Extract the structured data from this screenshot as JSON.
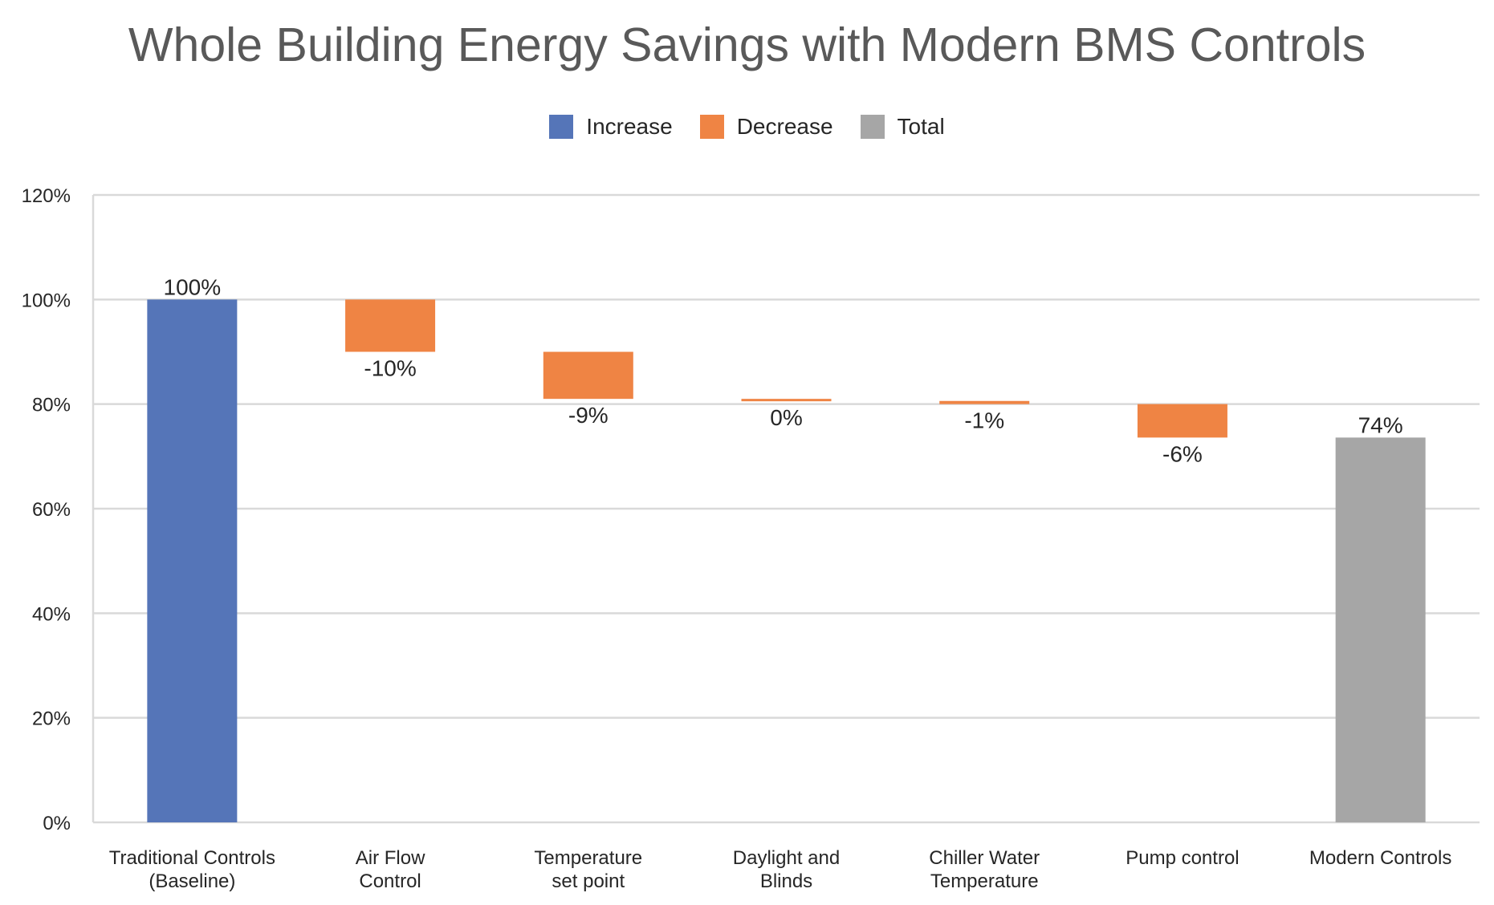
{
  "chart_data": {
    "type": "waterfall",
    "title": "Whole Building Energy Savings with Modern BMS Controls",
    "legend": [
      {
        "name": "Increase",
        "color": "#5575B8"
      },
      {
        "name": "Decrease",
        "color": "#EF8444"
      },
      {
        "name": "Total",
        "color": "#A6A6A6"
      }
    ],
    "legend_position": "top",
    "categories": [
      [
        "Traditional Controls",
        "(Baseline)"
      ],
      [
        "Air Flow",
        "Control"
      ],
      [
        "Temperature",
        "set point"
      ],
      [
        "Daylight and",
        "Blinds"
      ],
      [
        "Chiller Water",
        "Temperature"
      ],
      [
        "Pump control"
      ],
      [
        "Modern Controls"
      ]
    ],
    "bars": [
      {
        "kind": "Increase",
        "start": 0,
        "end": 100,
        "label": "100%"
      },
      {
        "kind": "Decrease",
        "start": 100,
        "end": 90,
        "label": "-10%"
      },
      {
        "kind": "Decrease",
        "start": 90,
        "end": 81,
        "label": "-9%"
      },
      {
        "kind": "Decrease",
        "start": 81,
        "end": 80.6,
        "label": "0%"
      },
      {
        "kind": "Decrease",
        "start": 80.6,
        "end": 80,
        "label": "-1%"
      },
      {
        "kind": "Decrease",
        "start": 80,
        "end": 73.6,
        "label": "-6%"
      },
      {
        "kind": "Total",
        "start": 0,
        "end": 73.6,
        "label": "74%"
      }
    ],
    "y_ticks": [
      "0%",
      "20%",
      "40%",
      "60%",
      "80%",
      "100%",
      "120%"
    ],
    "y_tick_values": [
      0,
      20,
      40,
      60,
      80,
      100,
      120
    ],
    "ylim": [
      0,
      120
    ],
    "grid": true,
    "axis_color": "#D9D9D9",
    "label_color": "#262626"
  }
}
